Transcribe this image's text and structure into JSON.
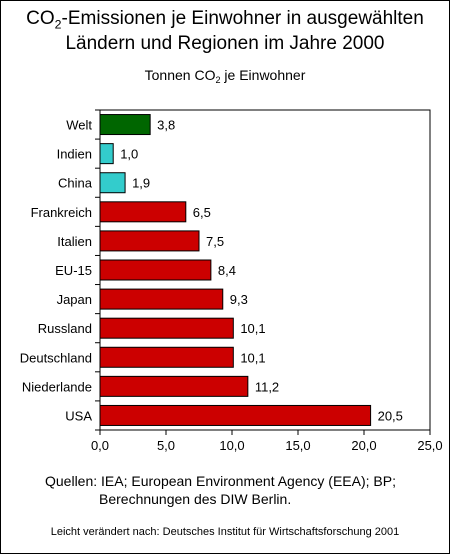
{
  "title": {
    "line1_pre": "CO",
    "line1_sub": "2",
    "line1_post": "-Emissionen je Einwohner in ausgewählten",
    "line2": "Ländern und Regionen im Jahre 2000"
  },
  "subtitle": {
    "pre": "Tonnen CO",
    "sub": "2",
    "post": " je Einwohner"
  },
  "sources": {
    "line1": "Quellen:  IEA; European Environment Agency (EEA); BP;",
    "line2": "Berechnungen des DIW Berlin."
  },
  "footer": "Leicht verändert nach: Deutsches Institut für Wirtschaftsforschung 2001",
  "colors": {
    "world": "#006600",
    "asia": "#33cccc",
    "other": "#cc0000"
  },
  "chart_data": {
    "type": "bar",
    "orientation": "horizontal",
    "categories": [
      "Welt",
      "Indien",
      "China",
      "Frankreich",
      "Italien",
      "EU-15",
      "Japan",
      "Russland",
      "Deutschland",
      "Niederlande",
      "USA"
    ],
    "values": [
      3.8,
      1.0,
      1.9,
      6.5,
      7.5,
      8.4,
      9.3,
      10.1,
      10.1,
      11.2,
      20.5
    ],
    "value_labels": [
      "3,8",
      "1,0",
      "1,9",
      "6,5",
      "7,5",
      "8,4",
      "9,3",
      "10,1",
      "10,1",
      "11,2",
      "20,5"
    ],
    "bar_colors": [
      "world",
      "asia",
      "asia",
      "other",
      "other",
      "other",
      "other",
      "other",
      "other",
      "other",
      "other"
    ],
    "xlim": [
      0,
      25
    ],
    "xticks": [
      0,
      5,
      10,
      15,
      20,
      25
    ],
    "xtick_labels": [
      "0,0",
      "5,0",
      "10,0",
      "15,0",
      "20,0",
      "25,0"
    ],
    "grid": false
  }
}
